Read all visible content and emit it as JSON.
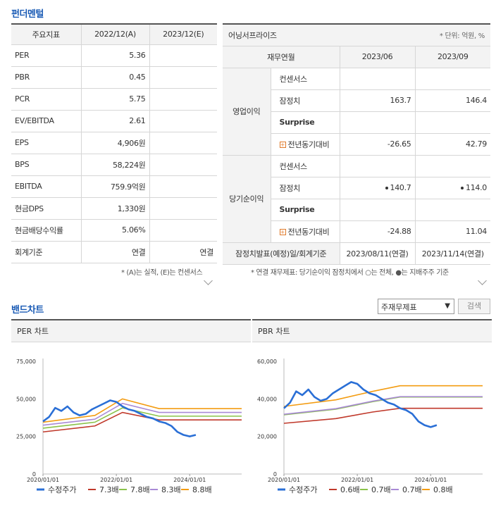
{
  "fundamental": {
    "title": "펀더멘털",
    "left_table": {
      "headers": [
        "주요지표",
        "2022/12(A)",
        "2023/12(E)"
      ],
      "rows": [
        {
          "label": "PER",
          "a": "5.36",
          "e": ""
        },
        {
          "label": "PBR",
          "a": "0.45",
          "e": ""
        },
        {
          "label": "PCR",
          "a": "5.75",
          "e": ""
        },
        {
          "label": "EV/EBITDA",
          "a": "2.61",
          "e": ""
        },
        {
          "label": "EPS",
          "a": "4,906원",
          "e": ""
        },
        {
          "label": "BPS",
          "a": "58,224원",
          "e": ""
        },
        {
          "label": "EBITDA",
          "a": "759.9억원",
          "e": ""
        },
        {
          "label": "현금DPS",
          "a": "1,330원",
          "e": ""
        },
        {
          "label": "현금배당수익률",
          "a": "5.06%",
          "e": ""
        },
        {
          "label": "회계기준",
          "a": "연결",
          "e": "연결"
        }
      ],
      "note": "* (A)는 실적, (E)는 컨센서스"
    },
    "right_table": {
      "title": "어닝서프라이즈",
      "unit": "* 단위: 억원, %",
      "col_header": "재무연월",
      "periods": [
        "2023/06",
        "2023/09"
      ],
      "groups": [
        {
          "name": "영업이익",
          "rows": [
            {
              "label": "컨센서스",
              "v1": "",
              "v2": ""
            },
            {
              "label": "잠정치",
              "v1": "163.7",
              "v2": "146.4"
            },
            {
              "label": "Surprise",
              "v1": "",
              "v2": ""
            },
            {
              "label": "전년동기대비",
              "v1": "-26.65",
              "v2": "42.79"
            }
          ]
        },
        {
          "name": "당기순이익",
          "rows": [
            {
              "label": "컨센서스",
              "v1": "",
              "v2": ""
            },
            {
              "label": "잠정치",
              "v1": "140.7",
              "v2": "114.0"
            },
            {
              "label": "Surprise",
              "v1": "",
              "v2": ""
            },
            {
              "label": "전년동기대비",
              "v1": "-24.88",
              "v2": "11.04"
            }
          ]
        }
      ],
      "release_label": "잠정치발표(예정)일/회계기준",
      "release": [
        "2023/08/11(연결)",
        "2023/11/14(연결)"
      ],
      "note": "* 연결 재무제표: 당기순이익 잠정치에서 ○는 전체, ●는 지배주주 기준"
    }
  },
  "band": {
    "title": "밴드차트",
    "select_value": "주재무제표",
    "search_label": "검색"
  },
  "chart_data": [
    {
      "type": "line",
      "title": "PER 차트",
      "ylim": [
        0,
        75000
      ],
      "yticks": [
        "0",
        "25,000",
        "50,000",
        "75,000"
      ],
      "xticks": [
        "2020/01/01",
        "2022/01/01",
        "2024/01/01"
      ],
      "x_range": [
        "2020/01/01",
        "2025/06/01"
      ],
      "price": {
        "name": "수정주가",
        "color": "#2a6fd6",
        "x": [
          "2020/01",
          "2020/03",
          "2020/05",
          "2020/07",
          "2020/09",
          "2020/11",
          "2021/01",
          "2021/03",
          "2021/05",
          "2021/07",
          "2021/09",
          "2021/11",
          "2022/01",
          "2022/03",
          "2022/05",
          "2022/07",
          "2022/09",
          "2022/11",
          "2023/01",
          "2023/03",
          "2023/05",
          "2023/07",
          "2023/09",
          "2023/11",
          "2024/01",
          "2024/03"
        ],
        "y": [
          35000,
          38000,
          44000,
          42000,
          45000,
          41000,
          39000,
          40000,
          43000,
          45000,
          47000,
          49000,
          48000,
          45000,
          43000,
          42000,
          40000,
          38000,
          37000,
          35000,
          34000,
          32000,
          28000,
          26000,
          25000,
          26000
        ]
      },
      "bands": [
        {
          "name": "7.3배",
          "color": "#c0392b",
          "x": [
            "2020/01",
            "2021/06",
            "2022/03",
            "2023/03",
            "2025/06"
          ],
          "y": [
            28000,
            32000,
            41000,
            36000,
            36000
          ]
        },
        {
          "name": "7.8배",
          "color": "#8bc34a",
          "x": [
            "2020/01",
            "2021/06",
            "2022/03",
            "2023/03",
            "2025/06"
          ],
          "y": [
            30500,
            34500,
            44000,
            38500,
            38500
          ]
        },
        {
          "name": "8.3배",
          "color": "#a98ad6",
          "x": [
            "2020/01",
            "2021/06",
            "2022/03",
            "2023/03",
            "2025/06"
          ],
          "y": [
            32500,
            36500,
            47000,
            41000,
            41000
          ]
        },
        {
          "name": "8.8배",
          "color": "#f39c12",
          "x": [
            "2020/01",
            "2021/06",
            "2022/03",
            "2023/03",
            "2025/06"
          ],
          "y": [
            34500,
            39000,
            50000,
            43500,
            43500
          ]
        }
      ]
    },
    {
      "type": "line",
      "title": "PBR 차트",
      "ylim": [
        0,
        60000
      ],
      "yticks": [
        "0",
        "20,000",
        "40,000",
        "60,000"
      ],
      "xticks": [
        "2020/01/01",
        "2022/01/01",
        "2024/01/01"
      ],
      "x_range": [
        "2020/01/01",
        "2025/06/01"
      ],
      "price": {
        "name": "수정주가",
        "color": "#2a6fd6",
        "x": [
          "2020/01",
          "2020/03",
          "2020/05",
          "2020/07",
          "2020/09",
          "2020/11",
          "2021/01",
          "2021/03",
          "2021/05",
          "2021/07",
          "2021/09",
          "2021/11",
          "2022/01",
          "2022/03",
          "2022/05",
          "2022/07",
          "2022/09",
          "2022/11",
          "2023/01",
          "2023/03",
          "2023/05",
          "2023/07",
          "2023/09",
          "2023/11",
          "2024/01",
          "2024/03"
        ],
        "y": [
          35000,
          38000,
          44000,
          42000,
          45000,
          41000,
          39000,
          40000,
          43000,
          45000,
          47000,
          49000,
          48000,
          45000,
          43000,
          42000,
          40000,
          38000,
          37000,
          35000,
          34000,
          32000,
          28000,
          26000,
          25000,
          26000
        ]
      },
      "bands": [
        {
          "name": "0.6배",
          "color": "#c0392b",
          "x": [
            "2020/01",
            "2021/06",
            "2022/06",
            "2023/03",
            "2025/06"
          ],
          "y": [
            27000,
            29500,
            33000,
            35000,
            35000
          ]
        },
        {
          "name": "0.7배",
          "color": "#8bc34a",
          "x": [
            "2020/01",
            "2021/06",
            "2022/06",
            "2023/03",
            "2025/06"
          ],
          "y": [
            31500,
            34500,
            38500,
            41000,
            41000
          ]
        },
        {
          "name": "0.7배",
          "color": "#a98ad6",
          "x": [
            "2020/01",
            "2021/06",
            "2022/06",
            "2023/03",
            "2025/06"
          ],
          "y": [
            31800,
            34800,
            38800,
            41200,
            41200
          ]
        },
        {
          "name": "0.8배",
          "color": "#f39c12",
          "x": [
            "2020/01",
            "2021/06",
            "2022/06",
            "2023/03",
            "2025/06"
          ],
          "y": [
            36000,
            39500,
            44000,
            47000,
            47000
          ]
        }
      ]
    }
  ]
}
